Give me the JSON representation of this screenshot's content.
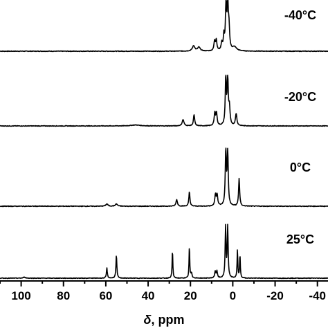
{
  "chart_data": {
    "type": "line",
    "xlabel_symbol": "δ",
    "xlabel_unit": ", ppm",
    "xlim": [
      110,
      -45
    ],
    "x_reversed": true,
    "xticks": [
      100,
      80,
      60,
      40,
      20,
      0,
      -20,
      -40
    ],
    "xtick_labels": [
      "100",
      "80",
      "60",
      "40",
      "20",
      "0",
      "-20",
      "-40"
    ],
    "y_axis_shown": false,
    "series": [
      {
        "name": "-40°C",
        "peaks": [
          {
            "ppm": 18.5,
            "height": 0.11,
            "width": 0.7
          },
          {
            "ppm": 16,
            "height": 0.08,
            "width": 0.7
          },
          {
            "ppm": 8.6,
            "height": 0.2,
            "width": 0.35
          },
          {
            "ppm": 7.8,
            "height": 0.22,
            "width": 0.35
          },
          {
            "ppm": 5.2,
            "height": 0.16,
            "width": 0.35
          },
          {
            "ppm": 4.2,
            "height": 0.3,
            "width": 0.3
          },
          {
            "ppm": 3.2,
            "height": 1.0,
            "width": 0.3
          },
          {
            "ppm": 2.4,
            "height": 1.0,
            "width": 0.3
          },
          {
            "ppm": 1.8,
            "height": 0.45,
            "width": 0.35
          },
          {
            "ppm": -0.8,
            "height": 0.08,
            "width": 1.2
          }
        ]
      },
      {
        "name": "-20°C",
        "peaks": [
          {
            "ppm": 46,
            "height": 0.02,
            "width": 2.5
          },
          {
            "ppm": 23.5,
            "height": 0.13,
            "width": 0.5
          },
          {
            "ppm": 18.3,
            "height": 0.23,
            "width": 0.35
          },
          {
            "ppm": 8.5,
            "height": 0.25,
            "width": 0.35
          },
          {
            "ppm": 7.7,
            "height": 0.26,
            "width": 0.35
          },
          {
            "ppm": 3.3,
            "height": 1.0,
            "width": 0.3
          },
          {
            "ppm": 2.4,
            "height": 1.0,
            "width": 0.3
          },
          {
            "ppm": 1.6,
            "height": 0.35,
            "width": 0.35
          },
          {
            "ppm": -1.6,
            "height": 0.25,
            "width": 0.4
          }
        ]
      },
      {
        "name": "0°C",
        "peaks": [
          {
            "ppm": 59.5,
            "height": 0.04,
            "width": 0.6
          },
          {
            "ppm": 55,
            "height": 0.04,
            "width": 0.6
          },
          {
            "ppm": 26.5,
            "height": 0.12,
            "width": 0.4
          },
          {
            "ppm": 20.5,
            "height": 0.26,
            "width": 0.3
          },
          {
            "ppm": 8.2,
            "height": 0.2,
            "width": 0.35
          },
          {
            "ppm": 7.4,
            "height": 0.2,
            "width": 0.35
          },
          {
            "ppm": 3.3,
            "height": 1.0,
            "width": 0.3
          },
          {
            "ppm": 2.4,
            "height": 1.0,
            "width": 0.3
          },
          {
            "ppm": -3.0,
            "height": 0.5,
            "width": 0.3
          }
        ]
      },
      {
        "name": "25°C",
        "peaks": [
          {
            "ppm": 98.5,
            "height": 0.02,
            "width": 0.6
          },
          {
            "ppm": 59.5,
            "height": 0.2,
            "width": 0.25
          },
          {
            "ppm": 55,
            "height": 0.45,
            "width": 0.25
          },
          {
            "ppm": 28.5,
            "height": 0.55,
            "width": 0.2
          },
          {
            "ppm": 20.5,
            "height": 0.62,
            "width": 0.2
          },
          {
            "ppm": 19.5,
            "height": 0.1,
            "width": 0.3
          },
          {
            "ppm": 8.3,
            "height": 0.13,
            "width": 0.3
          },
          {
            "ppm": 7.5,
            "height": 0.13,
            "width": 0.3
          },
          {
            "ppm": 3.4,
            "height": 1.0,
            "width": 0.25
          },
          {
            "ppm": 2.4,
            "height": 1.0,
            "width": 0.25
          },
          {
            "ppm": -2.2,
            "height": 0.55,
            "width": 0.2
          },
          {
            "ppm": -3.4,
            "height": 0.45,
            "width": 0.2
          }
        ]
      }
    ]
  }
}
